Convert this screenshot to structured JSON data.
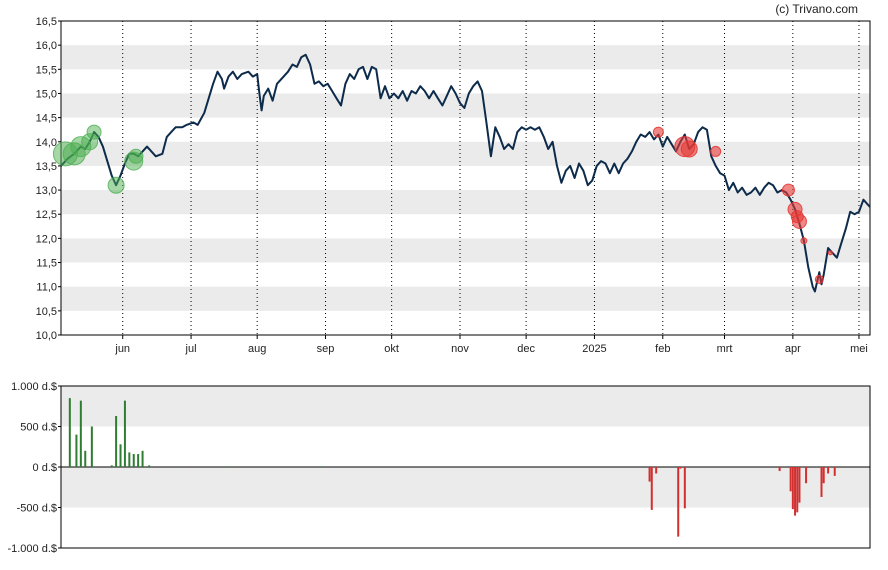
{
  "credit": "(c) Trivano.com",
  "chart_data": [
    {
      "type": "line",
      "y_ticks": [
        "10,0",
        "10,5",
        "11,0",
        "11,5",
        "12,0",
        "12,5",
        "13,0",
        "13,5",
        "14,0",
        "14,5",
        "15,0",
        "15,5",
        "16,0",
        "16,5"
      ],
      "y_tick_values": [
        10.0,
        10.5,
        11.0,
        11.5,
        12.0,
        12.5,
        13.0,
        13.5,
        14.0,
        14.5,
        15.0,
        15.5,
        16.0,
        16.5
      ],
      "ylim": [
        10.0,
        16.5
      ],
      "x_ticks": [
        "jun",
        "jul",
        "aug",
        "sep",
        "okt",
        "nov",
        "dec",
        "2025",
        "feb",
        "mrt",
        "apr",
        "mei"
      ],
      "x_tick_days": [
        28,
        59,
        89,
        120,
        150,
        181,
        211,
        242,
        273,
        301,
        332,
        362
      ],
      "xlim_days": [
        0,
        367
      ],
      "grid": "alternating horizontal bands, dotted vertical month lines",
      "colors": {
        "line": "#0d2b4a",
        "band": "#ebebeb",
        "buy": "#4caf50",
        "sell": "#e53935"
      },
      "series": [
        {
          "points": [
            [
              0,
              13.5
            ],
            [
              3,
              13.65
            ],
            [
              6,
              13.75
            ],
            [
              9,
              13.9
            ],
            [
              11,
              13.85
            ],
            [
              13,
              14.0
            ],
            [
              15,
              14.2
            ],
            [
              17,
              14.1
            ],
            [
              19,
              13.9
            ],
            [
              21,
              13.6
            ],
            [
              23,
              13.3
            ],
            [
              25,
              13.1
            ],
            [
              27,
              13.3
            ],
            [
              29,
              13.55
            ],
            [
              31,
              13.75
            ],
            [
              33,
              13.75
            ],
            [
              35,
              13.7
            ],
            [
              37,
              13.8
            ],
            [
              39,
              13.9
            ],
            [
              41,
              13.8
            ],
            [
              43,
              13.7
            ],
            [
              46,
              13.75
            ],
            [
              48,
              14.1
            ],
            [
              50,
              14.2
            ],
            [
              52,
              14.3
            ],
            [
              55,
              14.3
            ],
            [
              57,
              14.35
            ],
            [
              60,
              14.4
            ],
            [
              62,
              14.35
            ],
            [
              65,
              14.6
            ],
            [
              67,
              14.9
            ],
            [
              69,
              15.2
            ],
            [
              71,
              15.45
            ],
            [
              73,
              15.3
            ],
            [
              74,
              15.1
            ],
            [
              76,
              15.35
            ],
            [
              78,
              15.45
            ],
            [
              80,
              15.3
            ],
            [
              82,
              15.4
            ],
            [
              85,
              15.45
            ],
            [
              87,
              15.35
            ],
            [
              89,
              15.4
            ],
            [
              90,
              15.0
            ],
            [
              91,
              14.65
            ],
            [
              92,
              14.95
            ],
            [
              94,
              15.1
            ],
            [
              96,
              14.85
            ],
            [
              98,
              15.2
            ],
            [
              101,
              15.35
            ],
            [
              103,
              15.45
            ],
            [
              105,
              15.6
            ],
            [
              107,
              15.55
            ],
            [
              109,
              15.75
            ],
            [
              111,
              15.8
            ],
            [
              113,
              15.6
            ],
            [
              115,
              15.2
            ],
            [
              117,
              15.25
            ],
            [
              119,
              15.15
            ],
            [
              121,
              15.2
            ],
            [
              123,
              15.05
            ],
            [
              125,
              14.9
            ],
            [
              127,
              14.75
            ],
            [
              129,
              15.2
            ],
            [
              131,
              15.4
            ],
            [
              133,
              15.3
            ],
            [
              135,
              15.5
            ],
            [
              137,
              15.55
            ],
            [
              139,
              15.3
            ],
            [
              141,
              15.55
            ],
            [
              143,
              15.5
            ],
            [
              145,
              14.9
            ],
            [
              147,
              15.15
            ],
            [
              149,
              14.9
            ],
            [
              151,
              15.0
            ],
            [
              153,
              14.9
            ],
            [
              155,
              15.05
            ],
            [
              157,
              14.85
            ],
            [
              159,
              15.05
            ],
            [
              161,
              15.0
            ],
            [
              163,
              15.15
            ],
            [
              165,
              15.05
            ],
            [
              167,
              14.9
            ],
            [
              169,
              15.05
            ],
            [
              171,
              14.9
            ],
            [
              173,
              14.75
            ],
            [
              175,
              14.95
            ],
            [
              177,
              15.15
            ],
            [
              179,
              15.0
            ],
            [
              181,
              14.8
            ],
            [
              183,
              14.7
            ],
            [
              185,
              15.0
            ],
            [
              187,
              15.15
            ],
            [
              189,
              15.25
            ],
            [
              191,
              15.05
            ],
            [
              193,
              14.4
            ],
            [
              195,
              13.7
            ],
            [
              197,
              14.3
            ],
            [
              199,
              14.1
            ],
            [
              201,
              13.85
            ],
            [
              203,
              13.95
            ],
            [
              205,
              13.85
            ],
            [
              207,
              14.2
            ],
            [
              209,
              14.3
            ],
            [
              211,
              14.25
            ],
            [
              213,
              14.3
            ],
            [
              215,
              14.25
            ],
            [
              217,
              14.3
            ],
            [
              219,
              14.1
            ],
            [
              221,
              13.85
            ],
            [
              223,
              14.0
            ],
            [
              225,
              13.5
            ],
            [
              227,
              13.15
            ],
            [
              229,
              13.4
            ],
            [
              231,
              13.5
            ],
            [
              233,
              13.25
            ],
            [
              235,
              13.55
            ],
            [
              237,
              13.4
            ],
            [
              239,
              13.1
            ],
            [
              241,
              13.2
            ],
            [
              243,
              13.5
            ],
            [
              245,
              13.6
            ],
            [
              247,
              13.55
            ],
            [
              249,
              13.35
            ],
            [
              251,
              13.55
            ],
            [
              253,
              13.35
            ],
            [
              255,
              13.55
            ],
            [
              257,
              13.65
            ],
            [
              259,
              13.8
            ],
            [
              261,
              14.0
            ],
            [
              263,
              14.15
            ],
            [
              265,
              14.1
            ],
            [
              267,
              14.2
            ],
            [
              269,
              14.05
            ],
            [
              271,
              14.15
            ],
            [
              273,
              13.9
            ],
            [
              275,
              14.1
            ],
            [
              277,
              13.95
            ],
            [
              279,
              13.8
            ],
            [
              281,
              14.0
            ],
            [
              283,
              14.15
            ],
            [
              285,
              13.85
            ],
            [
              287,
              13.95
            ],
            [
              289,
              14.2
            ],
            [
              291,
              14.3
            ],
            [
              293,
              14.25
            ],
            [
              295,
              13.7
            ],
            [
              297,
              13.5
            ],
            [
              299,
              13.35
            ],
            [
              301,
              13.3
            ],
            [
              303,
              13.0
            ],
            [
              305,
              13.15
            ],
            [
              307,
              12.95
            ],
            [
              309,
              13.05
            ],
            [
              311,
              12.9
            ],
            [
              313,
              12.95
            ],
            [
              315,
              13.05
            ],
            [
              317,
              12.9
            ],
            [
              319,
              13.05
            ],
            [
              321,
              13.15
            ],
            [
              323,
              13.1
            ],
            [
              325,
              12.95
            ],
            [
              327,
              13.0
            ],
            [
              329,
              12.95
            ],
            [
              331,
              12.8
            ],
            [
              333,
              12.6
            ],
            [
              335,
              12.3
            ],
            [
              337,
              11.95
            ],
            [
              339,
              11.4
            ],
            [
              341,
              11.0
            ],
            [
              342,
              10.9
            ],
            [
              344,
              11.3
            ],
            [
              345,
              11.05
            ],
            [
              346,
              11.25
            ],
            [
              348,
              11.8
            ],
            [
              350,
              11.7
            ],
            [
              352,
              11.6
            ],
            [
              354,
              11.9
            ],
            [
              356,
              12.2
            ],
            [
              358,
              12.55
            ],
            [
              360,
              12.5
            ],
            [
              362,
              12.55
            ],
            [
              364,
              12.8
            ],
            [
              367,
              12.65
            ]
          ]
        }
      ],
      "buy_markers": [
        [
          2,
          13.75,
          12
        ],
        [
          6,
          13.75,
          11
        ],
        [
          9,
          13.9,
          10
        ],
        [
          13,
          14.0,
          8
        ],
        [
          15,
          14.2,
          7
        ],
        [
          25,
          13.1,
          8
        ],
        [
          33,
          13.6,
          9
        ],
        [
          34,
          13.7,
          7
        ]
      ],
      "sell_markers": [
        [
          271,
          14.2,
          5
        ],
        [
          283,
          13.9,
          10
        ],
        [
          285,
          13.85,
          8
        ],
        [
          297,
          13.8,
          5
        ],
        [
          330,
          13.0,
          6
        ],
        [
          333,
          12.6,
          7
        ],
        [
          334,
          12.45,
          6
        ],
        [
          335,
          12.35,
          7
        ],
        [
          337,
          11.95,
          3
        ],
        [
          344,
          11.15,
          4
        ],
        [
          349,
          11.7,
          2
        ]
      ]
    },
    {
      "type": "bar",
      "y_ticks": [
        "1.000 d.$",
        "500 d.$",
        "0 d.$",
        "-500 d.$",
        "-1.000 d.$"
      ],
      "y_tick_values": [
        1000,
        500,
        0,
        -500,
        -1000
      ],
      "ylim": [
        -1000,
        1000
      ],
      "x_days": [
        4,
        7,
        9,
        11,
        14,
        23,
        25,
        27,
        29,
        31,
        33,
        35,
        37,
        40,
        52,
        76,
        118,
        267,
        268,
        270,
        280,
        281,
        283,
        326,
        331,
        332,
        333,
        334,
        335,
        338,
        345,
        346,
        348,
        351
      ],
      "values": [
        850,
        400,
        820,
        200,
        500,
        20,
        630,
        280,
        820,
        180,
        160,
        160,
        200,
        20,
        10,
        10,
        10,
        -180,
        -530,
        -80,
        -860,
        -20,
        -510,
        -50,
        -300,
        -520,
        -600,
        -560,
        -440,
        -200,
        -370,
        -200,
        -80,
        -110
      ]
    }
  ]
}
